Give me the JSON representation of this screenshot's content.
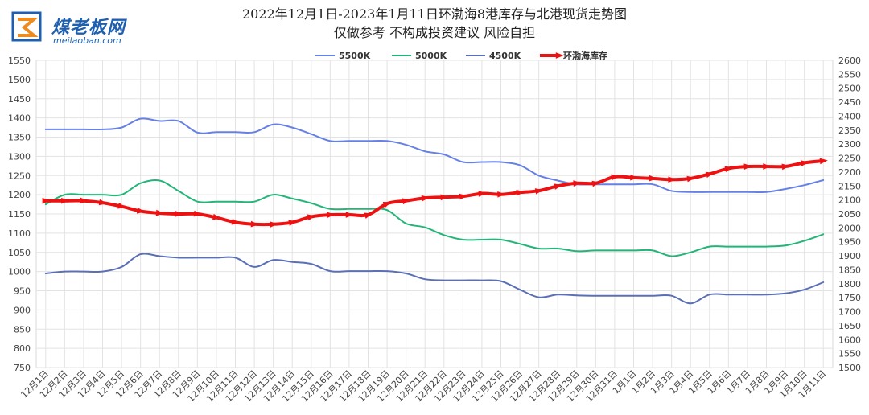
{
  "header": {
    "logo_text": "煤老板网",
    "logo_url": "meilaoban.com"
  },
  "chart_data": {
    "type": "line",
    "title": "2022年12月1日-2023年1月11日环渤海8港库存与北港现货走势图",
    "subtitle": "仅做参考 不构成投资建议 风险自担",
    "legend_position": "top",
    "grid": true,
    "categories": [
      "12月1日",
      "12月2日",
      "12月3日",
      "12月4日",
      "12月5日",
      "12月6日",
      "12月7日",
      "12月8日",
      "12月9日",
      "12月10日",
      "12月11日",
      "12月12日",
      "12月13日",
      "12月14日",
      "12月15日",
      "12月16日",
      "12月17日",
      "12月18日",
      "12月19日",
      "12月20日",
      "12月21日",
      "12月22日",
      "12月23日",
      "12月24日",
      "12月25日",
      "12月26日",
      "12月27日",
      "12月28日",
      "12月29日",
      "12月30日",
      "12月31日",
      "1月1日",
      "1月2日",
      "1月3日",
      "1月4日",
      "1月5日",
      "1月6日",
      "1月7日",
      "1月8日",
      "1月9日",
      "1月10日",
      "1月11日"
    ],
    "y_left": {
      "min": 750,
      "max": 1550,
      "step": 50,
      "ticks": [
        "750",
        "800",
        "850",
        "900",
        "950",
        "1000",
        "1050",
        "1100",
        "1150",
        "1200",
        "1250",
        "1300",
        "1350",
        "1400",
        "1450",
        "1500",
        "1550"
      ]
    },
    "y_right": {
      "min": 1500,
      "max": 2600,
      "step": 50,
      "ticks": [
        "1500",
        "1550",
        "1600",
        "1650",
        "1700",
        "1750",
        "1800",
        "1850",
        "1900",
        "1950",
        "2000",
        "2050",
        "2100",
        "2150",
        "2200",
        "2250",
        "2300",
        "2350",
        "2400",
        "2450",
        "2500",
        "2550",
        "2600"
      ]
    },
    "series": [
      {
        "name": "5500K",
        "axis": "left",
        "color": "#6680e6",
        "width": 2,
        "markers": false,
        "values": [
          1370,
          1370,
          1370,
          1370,
          1375,
          1398,
          1392,
          1392,
          1362,
          1363,
          1363,
          1363,
          1383,
          1375,
          1358,
          1340,
          1340,
          1340,
          1340,
          1330,
          1313,
          1305,
          1285,
          1285,
          1285,
          1277,
          1250,
          1237,
          1227,
          1227,
          1227,
          1227,
          1227,
          1210,
          1207,
          1207,
          1207,
          1207,
          1207,
          1215,
          1225,
          1238
        ]
      },
      {
        "name": "5000K",
        "axis": "left",
        "color": "#22b577",
        "width": 2,
        "markers": false,
        "values": [
          1175,
          1200,
          1200,
          1200,
          1200,
          1230,
          1237,
          1210,
          1182,
          1182,
          1182,
          1182,
          1200,
          1190,
          1178,
          1163,
          1163,
          1163,
          1160,
          1125,
          1115,
          1095,
          1083,
          1083,
          1083,
          1072,
          1060,
          1060,
          1053,
          1055,
          1055,
          1055,
          1055,
          1040,
          1050,
          1065,
          1065,
          1065,
          1065,
          1068,
          1080,
          1097
        ]
      },
      {
        "name": "4500K",
        "axis": "left",
        "color": "#5a6fb5",
        "width": 2,
        "markers": false,
        "values": [
          995,
          1000,
          1000,
          1000,
          1012,
          1045,
          1040,
          1036,
          1036,
          1036,
          1036,
          1012,
          1030,
          1025,
          1020,
          1001,
          1001,
          1001,
          1001,
          995,
          980,
          977,
          977,
          977,
          975,
          953,
          933,
          940,
          938,
          937,
          937,
          937,
          937,
          937,
          917,
          940,
          940,
          940,
          940,
          943,
          953,
          972
        ]
      },
      {
        "name": "环渤海库存",
        "axis": "right",
        "color": "#ee1111",
        "width": 4,
        "markers": true,
        "values": [
          2097,
          2097,
          2097,
          2090,
          2077,
          2060,
          2053,
          2050,
          2050,
          2037,
          2020,
          2013,
          2013,
          2020,
          2040,
          2047,
          2047,
          2047,
          2087,
          2097,
          2107,
          2110,
          2113,
          2123,
          2120,
          2127,
          2133,
          2150,
          2160,
          2160,
          2183,
          2180,
          2177,
          2173,
          2177,
          2193,
          2213,
          2220,
          2220,
          2220,
          2233,
          2240
        ]
      }
    ]
  }
}
